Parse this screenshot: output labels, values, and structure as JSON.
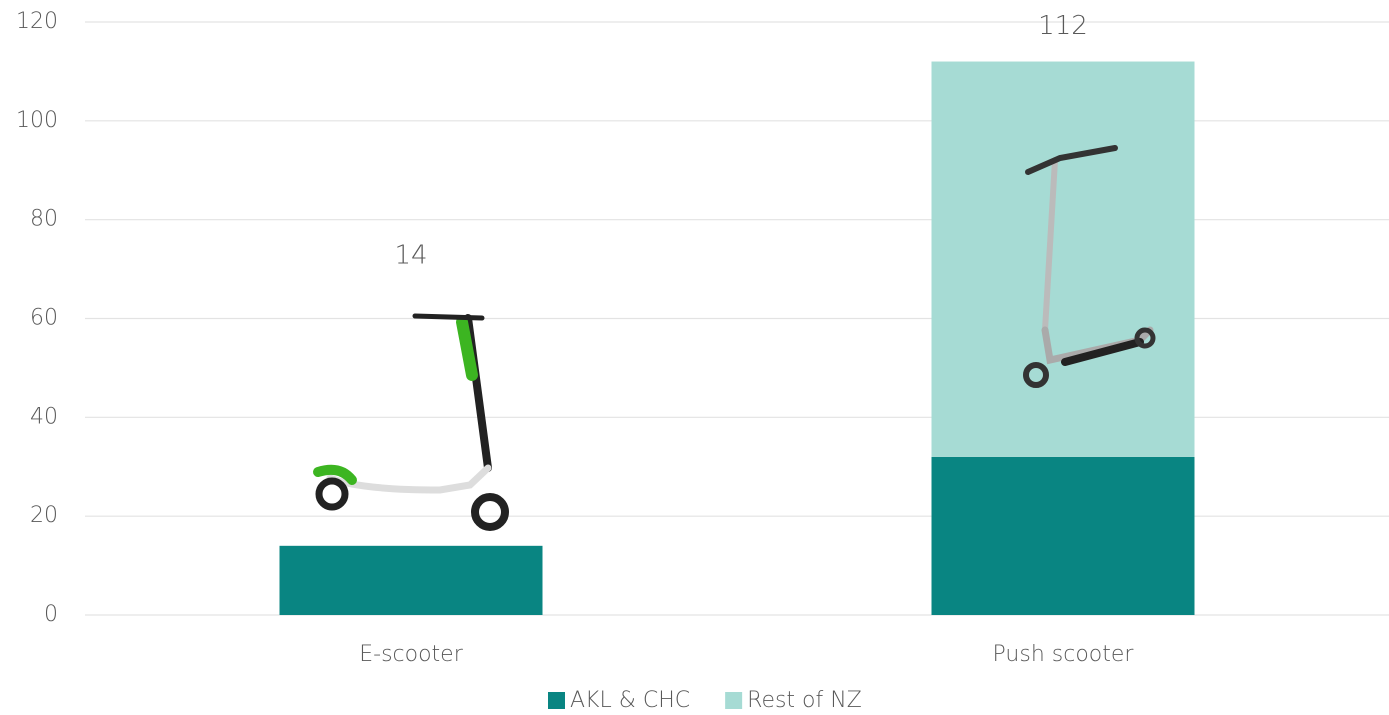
{
  "chart_data": {
    "type": "stacked_bar",
    "categories": [
      "E-scooter",
      "Push scooter"
    ],
    "series": [
      {
        "name": "AKL & CHC",
        "color": "#098582",
        "values": [
          14,
          32
        ]
      },
      {
        "name": "Rest of NZ",
        "color": "#a6dbd4",
        "values": [
          0,
          80
        ]
      }
    ],
    "totals": [
      14,
      112
    ],
    "ylim": [
      0,
      120
    ],
    "yticks": [
      0,
      20,
      40,
      60,
      80,
      100,
      120
    ],
    "grid": true,
    "legend": "bottom"
  }
}
